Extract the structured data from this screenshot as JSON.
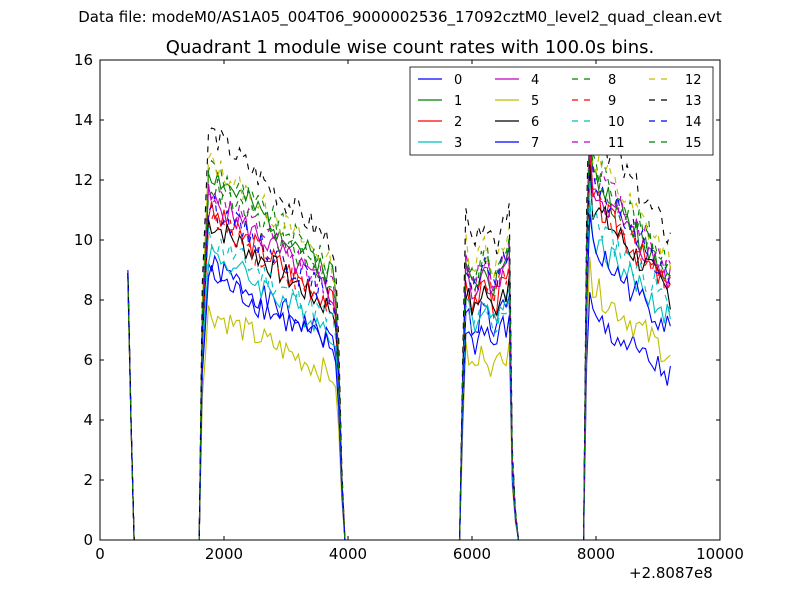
{
  "header": {
    "suptitle": "Data file: modeM0/AS1A05_004T06_9000002536_17092cztM0_level2_quad_clean.evt",
    "title": "Quadrant 1 module wise count rates with 100.0s bins."
  },
  "chart_data": {
    "type": "line",
    "title": "Quadrant 1 module wise count rates with 100.0s bins.",
    "xlabel": "",
    "ylabel": "",
    "xlim": [
      0,
      10000
    ],
    "ylim": [
      0,
      16
    ],
    "x_offset_label": "+2.8087e8",
    "xticks": [
      0,
      2000,
      4000,
      6000,
      8000,
      10000
    ],
    "yticks": [
      0,
      2,
      4,
      6,
      8,
      10,
      12,
      14,
      16
    ],
    "grid": false,
    "legend_position": "top-right",
    "legend_columns": 4,
    "segments": [
      {
        "start": 450,
        "step": 50,
        "count": 3
      },
      {
        "start": 1600,
        "step": 50,
        "count": 48
      },
      {
        "start": 5800,
        "step": 50,
        "count": 21
      },
      {
        "start": 7800,
        "step": 50,
        "count": 29
      }
    ],
    "series": [
      {
        "name": "0",
        "color": "#0000ff",
        "style": "solid",
        "levels": [
          9.0,
          8.2,
          7.4,
          7.0
        ],
        "seed": 1
      },
      {
        "name": "1",
        "color": "#008000",
        "style": "solid",
        "levels": [
          8.8,
          11.0,
          8.9,
          11.5
        ],
        "seed": 2
      },
      {
        "name": "2",
        "color": "#ff0000",
        "style": "solid",
        "levels": [
          8.9,
          9.8,
          8.2,
          10.8
        ],
        "seed": 3
      },
      {
        "name": "3",
        "color": "#00bfbf",
        "style": "solid",
        "levels": [
          8.9,
          8.6,
          7.6,
          9.6
        ],
        "seed": 4
      },
      {
        "name": "4",
        "color": "#bf00bf",
        "style": "solid",
        "levels": [
          8.8,
          10.2,
          8.6,
          11.2
        ],
        "seed": 5
      },
      {
        "name": "5",
        "color": "#bfbf00",
        "style": "solid",
        "levels": [
          8.4,
          6.8,
          6.0,
          8.0
        ],
        "seed": 6
      },
      {
        "name": "6",
        "color": "#000000",
        "style": "solid",
        "levels": [
          8.9,
          9.5,
          8.0,
          10.6
        ],
        "seed": 7
      },
      {
        "name": "7",
        "color": "#0000ff",
        "style": "solid",
        "levels": [
          8.9,
          7.9,
          6.8,
          9.2
        ],
        "seed": 8
      },
      {
        "name": "8",
        "color": "#008000",
        "style": "dashed",
        "levels": [
          8.8,
          11.2,
          9.2,
          12.0
        ],
        "seed": 9
      },
      {
        "name": "9",
        "color": "#ff0000",
        "style": "dashed",
        "levels": [
          8.7,
          9.6,
          8.4,
          11.0
        ],
        "seed": 10
      },
      {
        "name": "10",
        "color": "#00bfbf",
        "style": "dashed",
        "levels": [
          8.8,
          9.0,
          7.4,
          10.2
        ],
        "seed": 11
      },
      {
        "name": "11",
        "color": "#bf00bf",
        "style": "dashed",
        "levels": [
          8.8,
          10.4,
          9.0,
          11.8
        ],
        "seed": 12
      },
      {
        "name": "12",
        "color": "#bfbf00",
        "style": "dashed",
        "levels": [
          8.7,
          11.3,
          9.5,
          12.2
        ],
        "seed": 13
      },
      {
        "name": "13",
        "color": "#000000",
        "style": "dashed",
        "levels": [
          8.9,
          12.2,
          10.2,
          13.1
        ],
        "seed": 14
      },
      {
        "name": "14",
        "color": "#0000ff",
        "style": "dashed",
        "levels": [
          8.8,
          10.0,
          8.8,
          11.4
        ],
        "seed": 15
      },
      {
        "name": "15",
        "color": "#008000",
        "style": "dashed",
        "levels": [
          8.7,
          10.6,
          9.1,
          11.6
        ],
        "seed": 16
      }
    ]
  }
}
